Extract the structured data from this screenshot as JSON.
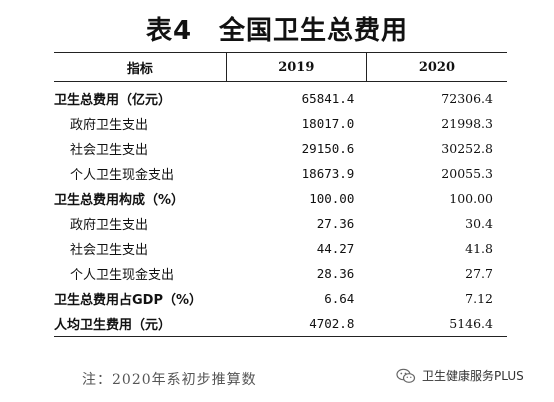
{
  "title": "表4　全国卫生总费用",
  "table": {
    "headers": [
      "指标",
      "2019",
      "2020"
    ],
    "rows": [
      {
        "label": "卫生总费用（亿元）",
        "sub": false,
        "v2019": "65841.4",
        "v2020": "72306.4"
      },
      {
        "label": "政府卫生支出",
        "sub": true,
        "v2019": "18017.0",
        "v2020": "21998.3"
      },
      {
        "label": "社会卫生支出",
        "sub": true,
        "v2019": "29150.6",
        "v2020": "30252.8"
      },
      {
        "label": "个人卫生现金支出",
        "sub": true,
        "v2019": "18673.9",
        "v2020": "20055.3"
      },
      {
        "label": "卫生总费用构成（%）",
        "sub": false,
        "v2019": "100.00",
        "v2020": "100.00"
      },
      {
        "label": "政府卫生支出",
        "sub": true,
        "v2019": "27.36",
        "v2020": "30.4"
      },
      {
        "label": "社会卫生支出",
        "sub": true,
        "v2019": "44.27",
        "v2020": "41.8"
      },
      {
        "label": "个人卫生现金支出",
        "sub": true,
        "v2019": "28.36",
        "v2020": "27.7"
      },
      {
        "label": "卫生总费用占GDP（%）",
        "sub": false,
        "v2019": "6.64",
        "v2020": "7.12"
      },
      {
        "label": "人均卫生费用（元）",
        "sub": false,
        "v2019": "4702.8",
        "v2020": "5146.4"
      }
    ]
  },
  "note": "注：2020年系初步推算数",
  "watermark": {
    "text": "卫生健康服务PLUS",
    "icon": "wechat-icon"
  }
}
